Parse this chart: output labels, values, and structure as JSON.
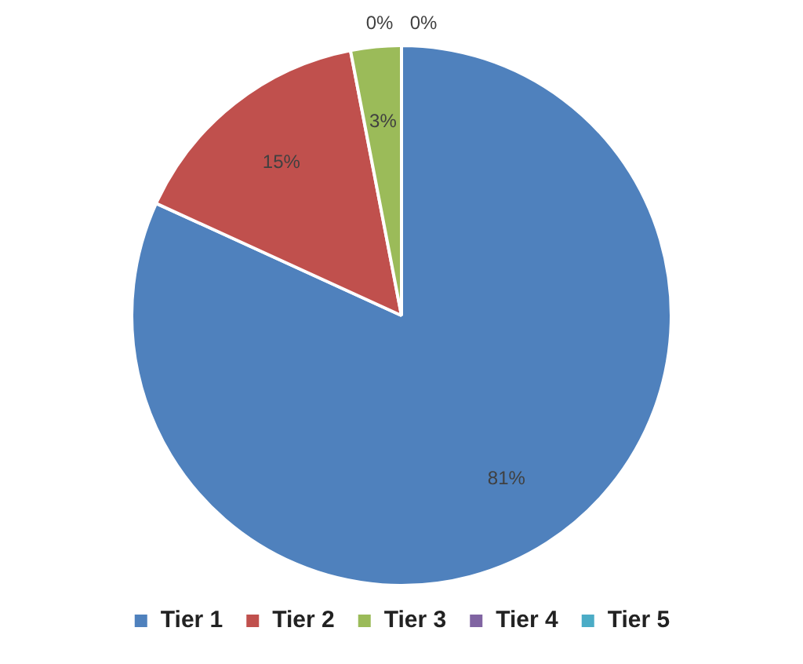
{
  "chart_data": {
    "type": "pie",
    "categories": [
      "Tier 1",
      "Tier 2",
      "Tier 3",
      "Tier 4",
      "Tier 5"
    ],
    "values": [
      81,
      15,
      3,
      0,
      0
    ],
    "colors": [
      "#4f81bd",
      "#c0504d",
      "#9bbb59",
      "#8064a2",
      "#4bacc6"
    ],
    "value_labels": [
      "81%",
      "15%",
      "3%",
      "0%",
      "0%"
    ],
    "legend": "bottom"
  }
}
